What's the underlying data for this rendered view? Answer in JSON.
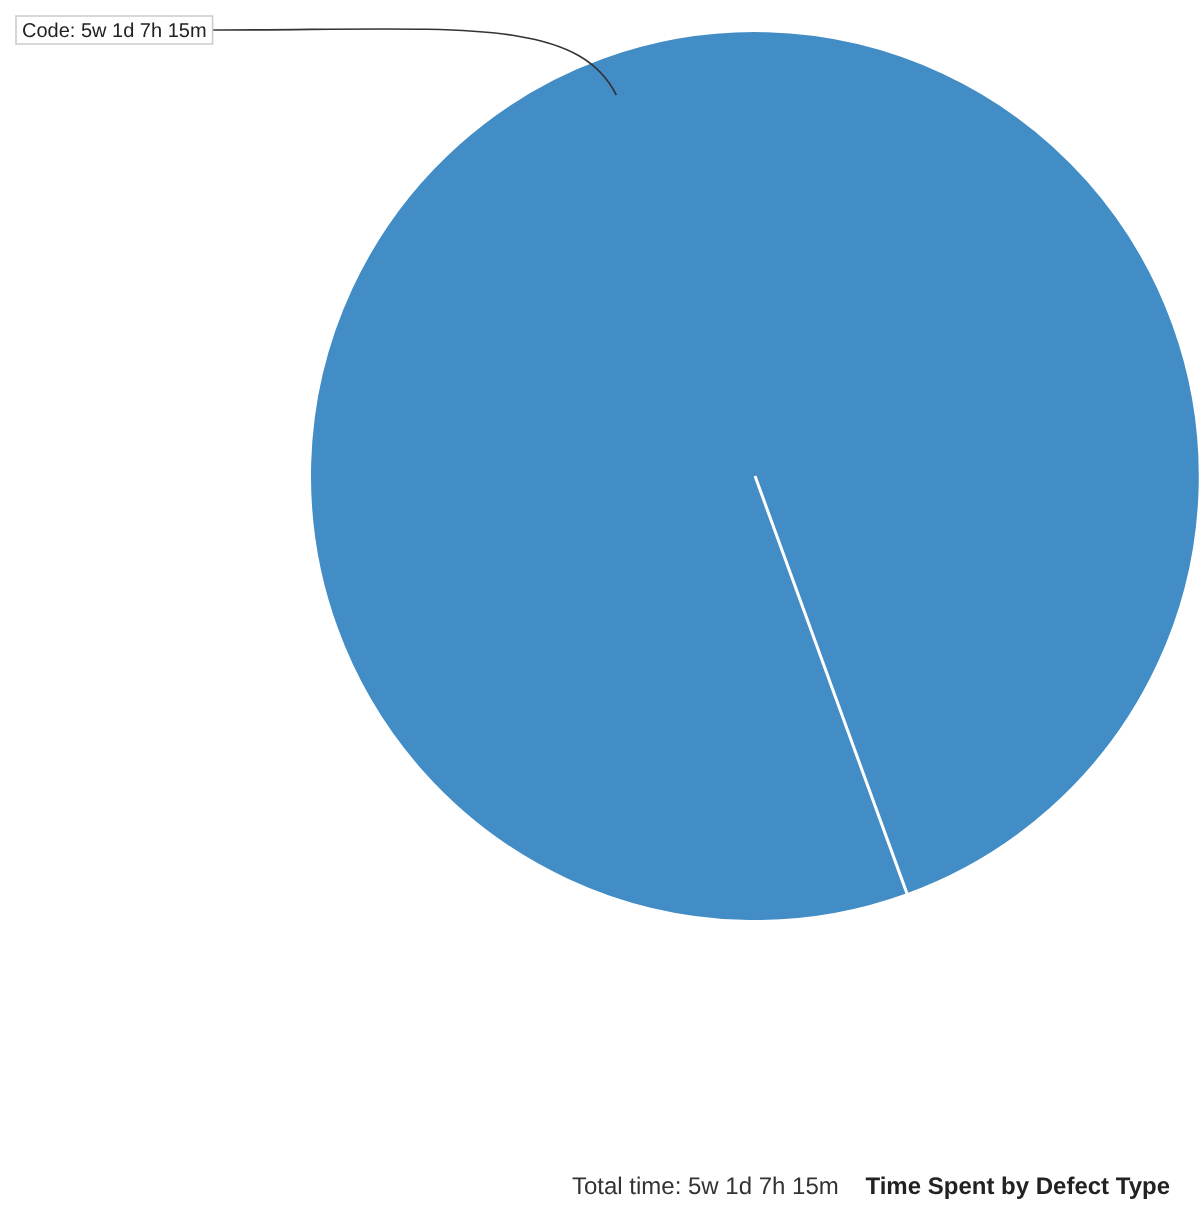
{
  "chart_data": {
    "type": "pie",
    "title": "Time Spent by Defect Type",
    "subtitle": "Total time: 5w 1d 7h 15m",
    "categories": [
      "Code"
    ],
    "values": [
      100
    ],
    "colors": [
      "#438dc6"
    ],
    "annotations": [
      ": 5w 1d 7h 15m"
    ],
    "legend": false
  }
}
